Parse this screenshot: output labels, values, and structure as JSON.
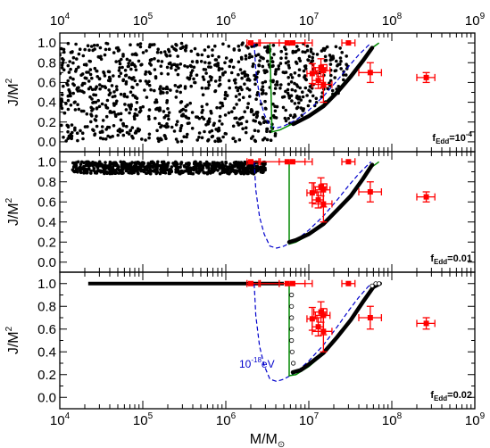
{
  "chart_data": {
    "type": "scatter",
    "panel_count": 3,
    "xscale": "log",
    "xlim": [
      10000,
      1000000000
    ],
    "ylim": [
      -0.1,
      1.1
    ],
    "x_ticks": [
      10000,
      100000,
      1000000,
      10000000,
      100000000,
      1000000000
    ],
    "x_tick_labels_top": [
      {
        "base": "10",
        "exp": "4"
      },
      {
        "base": "10",
        "exp": "5"
      },
      {
        "base": "10",
        "exp": "6"
      },
      {
        "base": "10",
        "exp": "7"
      },
      {
        "base": "10",
        "exp": "8"
      },
      {
        "base": "10",
        "exp": "9"
      }
    ],
    "x_tick_labels_bottom": [
      {
        "base": "10",
        "exp": "4"
      },
      {
        "base": "10",
        "exp": "5"
      },
      {
        "base": "10",
        "exp": "6"
      },
      {
        "base": "10",
        "exp": "7"
      },
      {
        "base": "10",
        "exp": "8"
      },
      {
        "base": "10",
        "exp": "9"
      }
    ],
    "y_ticks": [
      "0.0",
      "0.2",
      "0.4",
      "0.6",
      "0.8",
      "1.0"
    ],
    "xlabel": {
      "main": "M/M",
      "sub": "⊙"
    },
    "ylabel": {
      "main": "J/M",
      "sup": "2"
    },
    "panel_labels": [
      {
        "base": "f",
        "sub": "Edd",
        "mid": "=10",
        "sup": "-4",
        "tail": ""
      },
      {
        "base": "f",
        "sub": "Edd",
        "mid": "=0.01",
        "sup": "",
        "tail": ""
      },
      {
        "base": "f",
        "sub": "Edd",
        "mid": "=0.02",
        "sup": "",
        "tail": ""
      }
    ],
    "annotation": {
      "base": "10",
      "sup": "-18",
      "tail": "eV"
    },
    "colors": {
      "data": "#ff0000",
      "dashed_curve": "#0000cc",
      "green_curve": "#008800",
      "points": "#000000"
    },
    "observed_points": [
      {
        "x": 2000000,
        "xerr": [
          1800000,
          2600000
        ],
        "y": 1.0,
        "yerr": [
          1.0,
          1.0
        ]
      },
      {
        "x": 5500000,
        "xerr": [
          2500000,
          11000000
        ],
        "y": 1.0,
        "yerr": [
          1.0,
          1.0
        ]
      },
      {
        "x": 6400000,
        "xerr": [
          4400000,
          9000000
        ],
        "y": 1.0,
        "yerr": [
          1.0,
          1.0
        ]
      },
      {
        "x": 30000000,
        "xerr": [
          25000000,
          36000000
        ],
        "y": 1.0,
        "yerr": [
          1.0,
          1.0
        ]
      },
      {
        "x": 11000000,
        "xerr": [
          9500000,
          12500000
        ],
        "y": 0.69,
        "yerr": [
          0.59,
          0.79
        ]
      },
      {
        "x": 13000000,
        "xerr": [
          11000000,
          15000000
        ],
        "y": 0.62,
        "yerr": [
          0.54,
          0.7
        ]
      },
      {
        "x": 14000000,
        "xerr": [
          11500000,
          16500000
        ],
        "y": 0.75,
        "yerr": [
          0.66,
          0.84
        ]
      },
      {
        "x": 15000000,
        "xerr": [
          12000000,
          18000000
        ],
        "y": 0.72,
        "yerr": [
          0.55,
          0.78
        ]
      },
      {
        "x": 15000000,
        "xerr": [
          11000000,
          19000000
        ],
        "y": 0.58,
        "yerr": [
          0.4,
          0.72
        ]
      },
      {
        "x": 55000000,
        "xerr": [
          40000000,
          75000000
        ],
        "y": 0.7,
        "yerr": [
          0.6,
          0.8
        ]
      },
      {
        "x": 260000000,
        "xerr": [
          200000000,
          330000000
        ],
        "y": 0.65,
        "yerr": [
          0.6,
          0.7
        ]
      }
    ],
    "dashed_curve_points": [
      [
        2200000,
        1.0
      ],
      [
        2300000,
        0.72
      ],
      [
        2550000,
        0.45
      ],
      [
        2900000,
        0.28
      ],
      [
        3400000,
        0.16
      ],
      [
        4100000,
        0.14
      ],
      [
        5000000,
        0.16
      ],
      [
        7000000,
        0.22
      ],
      [
        10000000,
        0.32
      ],
      [
        15000000,
        0.46
      ],
      [
        22000000,
        0.62
      ],
      [
        30000000,
        0.76
      ],
      [
        40000000,
        0.88
      ],
      [
        50000000,
        0.96
      ],
      [
        56000000,
        1.0
      ]
    ],
    "panels": [
      {
        "green_curve_points": [
          [
            3400000,
            1.0
          ],
          [
            3600000,
            0.1
          ],
          [
            4500000,
            0.12
          ],
          [
            7000000,
            0.2
          ],
          [
            10000000,
            0.27
          ],
          [
            15000000,
            0.38
          ],
          [
            22000000,
            0.52
          ],
          [
            32000000,
            0.68
          ],
          [
            45000000,
            0.84
          ],
          [
            58000000,
            0.95
          ],
          [
            70000000,
            1.0
          ]
        ],
        "spin_curve_points": [
          [
            6500000,
            0.18
          ],
          [
            10000000,
            0.26
          ],
          [
            15000000,
            0.36
          ],
          [
            22000000,
            0.5
          ],
          [
            32000000,
            0.66
          ],
          [
            45000000,
            0.82
          ],
          [
            58000000,
            0.95
          ]
        ],
        "scatter_region": {
          "xlim": [
            10000,
            30000000
          ],
          "ylim": [
            0.0,
            1.0
          ],
          "n": 1100,
          "seed": 17,
          "mode": "uniform_cutout"
        }
      },
      {
        "green_curve_points": [
          [
            5800000,
            1.0
          ],
          [
            5800000,
            0.18
          ],
          [
            7000000,
            0.2
          ],
          [
            10000000,
            0.27
          ],
          [
            15000000,
            0.38
          ],
          [
            22000000,
            0.52
          ],
          [
            32000000,
            0.68
          ],
          [
            45000000,
            0.84
          ],
          [
            58000000,
            0.95
          ],
          [
            70000000,
            1.0
          ]
        ],
        "spin_curve_points": [
          [
            5800000,
            0.2
          ],
          [
            7000000,
            0.22
          ],
          [
            10000000,
            0.28
          ],
          [
            15000000,
            0.38
          ],
          [
            22000000,
            0.52
          ],
          [
            32000000,
            0.66
          ],
          [
            45000000,
            0.83
          ],
          [
            58000000,
            0.97
          ]
        ],
        "scatter_region": {
          "xlim": [
            14000,
            3000000
          ],
          "ylim": [
            0.88,
            1.0
          ],
          "n": 700,
          "seed": 41,
          "mode": "band"
        }
      },
      {
        "green_curve_points": [
          [
            5800000,
            1.0
          ],
          [
            5800000,
            0.19
          ],
          [
            7000000,
            0.2
          ],
          [
            10000000,
            0.27
          ],
          [
            15000000,
            0.38
          ],
          [
            22000000,
            0.52
          ],
          [
            32000000,
            0.68
          ],
          [
            45000000,
            0.84
          ],
          [
            58000000,
            0.95
          ],
          [
            70000000,
            1.0
          ]
        ],
        "spin_curve_points": [
          [
            6400000,
            0.22
          ],
          [
            8000000,
            0.24
          ],
          [
            10000000,
            0.29
          ],
          [
            15000000,
            0.39
          ],
          [
            22000000,
            0.53
          ],
          [
            32000000,
            0.68
          ],
          [
            45000000,
            0.84
          ],
          [
            60000000,
            0.97
          ],
          [
            72000000,
            1.0
          ]
        ],
        "plateau": {
          "x": [
            22000,
            5000000
          ],
          "y": 1.0
        },
        "open_markers": [
          [
            6200000,
            0.5
          ],
          [
            6200000,
            0.6
          ],
          [
            6200000,
            0.7
          ],
          [
            6200000,
            0.8
          ],
          [
            6200000,
            0.9
          ],
          [
            6300000,
            0.4
          ],
          [
            6500000,
            0.3
          ],
          [
            58000000,
            0.98
          ],
          [
            64000000,
            1.0
          ],
          [
            70000000,
            1.0
          ]
        ]
      }
    ]
  }
}
